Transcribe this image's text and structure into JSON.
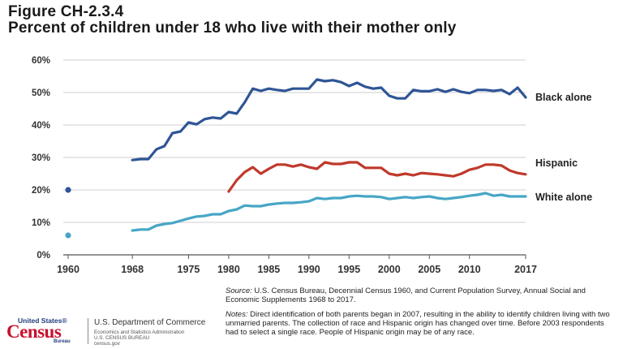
{
  "figure_label": "Figure CH-2.3.4",
  "figure_title": "Percent of children under 18 who live with their mother only",
  "chart_data": {
    "type": "line",
    "title": "Percent of children under 18 who live with their mother only",
    "xlabel": "",
    "ylabel": "",
    "xlim": [
      1960,
      2017
    ],
    "ylim": [
      0,
      60
    ],
    "y_ticks": [
      "0%",
      "10%",
      "20%",
      "30%",
      "40%",
      "50%",
      "60%"
    ],
    "x_ticks": [
      "1960",
      "1968",
      "1975",
      "1980",
      "1985",
      "1990",
      "1995",
      "2000",
      "2005",
      "2010",
      "2017"
    ],
    "grid": true,
    "legend": "inline labels at right end of lines",
    "series": [
      {
        "name": "Black alone",
        "color": "#2f5596",
        "points": [
          [
            1960,
            20
          ]
        ],
        "x": [
          1968,
          1969,
          1970,
          1971,
          1972,
          1973,
          1974,
          1975,
          1976,
          1977,
          1978,
          1979,
          1980,
          1981,
          1982,
          1983,
          1984,
          1985,
          1986,
          1987,
          1988,
          1989,
          1990,
          1991,
          1992,
          1993,
          1994,
          1995,
          1996,
          1997,
          1998,
          1999,
          2000,
          2001,
          2002,
          2003,
          2004,
          2005,
          2006,
          2007,
          2008,
          2009,
          2010,
          2011,
          2012,
          2013,
          2014,
          2015,
          2016,
          2017
        ],
        "values": [
          29.2,
          29.5,
          29.5,
          32.5,
          33.5,
          37.5,
          38,
          40.8,
          40.2,
          41.8,
          42.3,
          42,
          44,
          43.5,
          47,
          51.2,
          50.5,
          51.2,
          50.8,
          50.5,
          51.2,
          51.2,
          51.2,
          54,
          53.5,
          53.8,
          53.2,
          52,
          53,
          51.8,
          51.2,
          51.5,
          49,
          48.2,
          48.2,
          50.8,
          50.4,
          50.4,
          51,
          50.2,
          51,
          50.2,
          49.8,
          50.8,
          50.8,
          50.5,
          50.8,
          49.5,
          51.5,
          48.5
        ]
      },
      {
        "name": "Hispanic",
        "color": "#c0392b",
        "x": [
          1980,
          1981,
          1982,
          1983,
          1984,
          1985,
          1986,
          1987,
          1988,
          1989,
          1990,
          1991,
          1992,
          1993,
          1994,
          1995,
          1996,
          1997,
          1998,
          1999,
          2000,
          2001,
          2002,
          2003,
          2004,
          2005,
          2006,
          2007,
          2008,
          2009,
          2010,
          2011,
          2012,
          2013,
          2014,
          2015,
          2016,
          2017
        ],
        "values": [
          19.5,
          23,
          25.5,
          27,
          25,
          26.5,
          27.8,
          27.8,
          27.2,
          27.8,
          27,
          26.5,
          28.5,
          28,
          28,
          28.5,
          28.5,
          26.8,
          26.8,
          26.8,
          25,
          24.5,
          25,
          24.5,
          25.2,
          25,
          24.8,
          24.5,
          24.2,
          25,
          26.2,
          26.8,
          27.8,
          27.8,
          27.5,
          26,
          25.2,
          24.8
        ]
      },
      {
        "name": "White alone",
        "color": "#47a6c6",
        "points": [
          [
            1960,
            6
          ]
        ],
        "x": [
          1968,
          1969,
          1970,
          1971,
          1972,
          1973,
          1974,
          1975,
          1976,
          1977,
          1978,
          1979,
          1980,
          1981,
          1982,
          1983,
          1984,
          1985,
          1986,
          1987,
          1988,
          1989,
          1990,
          1991,
          1992,
          1993,
          1994,
          1995,
          1996,
          1997,
          1998,
          1999,
          2000,
          2001,
          2002,
          2003,
          2004,
          2005,
          2006,
          2007,
          2008,
          2009,
          2010,
          2011,
          2012,
          2013,
          2014,
          2015,
          2016,
          2017
        ],
        "values": [
          7.5,
          7.8,
          7.8,
          9,
          9.5,
          9.8,
          10.5,
          11.2,
          11.8,
          12,
          12.5,
          12.5,
          13.5,
          14,
          15.2,
          15,
          15,
          15.5,
          15.8,
          16,
          16,
          16.2,
          16.5,
          17.5,
          17.2,
          17.5,
          17.5,
          18,
          18.2,
          18,
          18,
          17.8,
          17.2,
          17.5,
          17.8,
          17.5,
          17.8,
          18,
          17.5,
          17.2,
          17.5,
          17.8,
          18.2,
          18.5,
          19,
          18.2,
          18.5,
          18,
          18,
          18
        ]
      }
    ]
  },
  "source": {
    "label": "Source:",
    "text": "U.S. Census Bureau, Decennial Census 1960, and Current Population Survey, Annual Social and Economic Supplements 1968 to 2017."
  },
  "notes": {
    "label": "Notes:",
    "text": "Direct identification of both parents began in 2007, resulting in the ability to identify children living with two unmarried parents. The collection of race and Hispanic origin has changed over time. Before 2003 respondents had to select a single race. People of Hispanic origin may be of any race."
  },
  "logo": {
    "top": "United States®",
    "big": "Census",
    "bureau": "Bureau",
    "dept": "U.S. Department of Commerce",
    "line1": "Economics and Statistics Administration",
    "line2": "U.S. CENSUS BUREAU",
    "line3": "census.gov",
    "colors": {
      "red": "#c8102e",
      "navy": "#1f3d7a"
    }
  }
}
